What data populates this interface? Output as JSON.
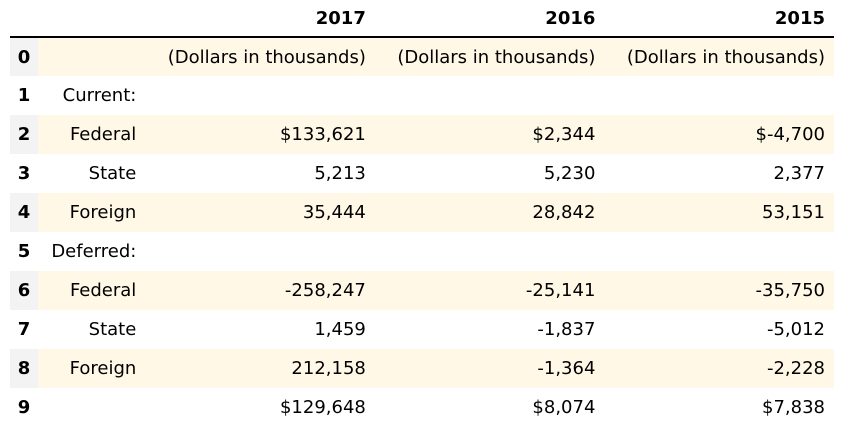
{
  "table": {
    "columns": [
      "",
      "",
      "2017",
      "2016",
      "2015"
    ],
    "rows": [
      {
        "index": "0",
        "label": "",
        "c2017": "(Dollars in thousands)",
        "c2016": "(Dollars in thousands)",
        "c2015": "(Dollars in thousands)"
      },
      {
        "index": "1",
        "label": "Current:",
        "c2017": "",
        "c2016": "",
        "c2015": ""
      },
      {
        "index": "2",
        "label": "Federal",
        "c2017": "$133,621",
        "c2016": "$2,344",
        "c2015": "$-4,700"
      },
      {
        "index": "3",
        "label": "State",
        "c2017": "5,213",
        "c2016": "5,230",
        "c2015": "2,377"
      },
      {
        "index": "4",
        "label": "Foreign",
        "c2017": "35,444",
        "c2016": "28,842",
        "c2015": "53,151"
      },
      {
        "index": "5",
        "label": "Deferred:",
        "c2017": "",
        "c2016": "",
        "c2015": ""
      },
      {
        "index": "6",
        "label": "Federal",
        "c2017": "-258,247",
        "c2016": "-25,141",
        "c2015": "-35,750"
      },
      {
        "index": "7",
        "label": "State",
        "c2017": "1,459",
        "c2016": "-1,837",
        "c2015": "-5,012"
      },
      {
        "index": "8",
        "label": "Foreign",
        "c2017": "212,158",
        "c2016": "-1,364",
        "c2015": "-2,228"
      },
      {
        "index": "9",
        "label": "",
        "c2017": "$129,648",
        "c2016": "$8,074",
        "c2015": "$7,838"
      }
    ]
  },
  "colors": {
    "row_shade": "#fff8e6",
    "index_shade": "#f3f3f3"
  }
}
